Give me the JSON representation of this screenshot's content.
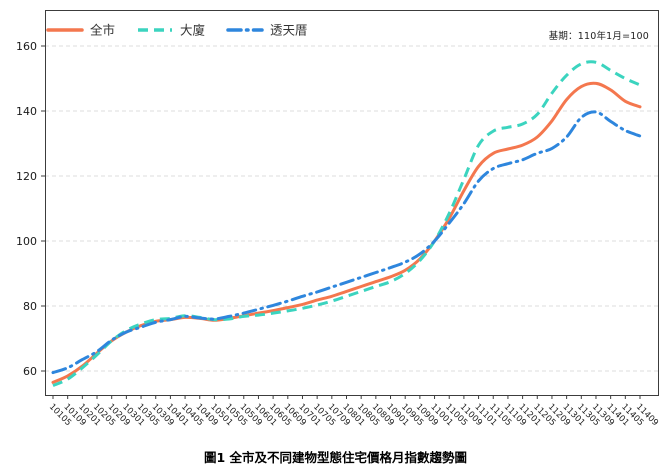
{
  "chart": {
    "note": "基期：110年1月=100",
    "title": "圖1 全市及不同建物型態住宅價格月指數趨勢圖"
  },
  "colors": {
    "grid": "#DCDCDC",
    "spine": "#3C3C3C",
    "tick_label": "#1A1A1A",
    "legend_text": "#333333",
    "note_text": "#222222"
  },
  "chart_data": {
    "type": "line",
    "title": "圖1 全市及不同建物型態住宅價格月指數趨勢圖",
    "note": "基期：110年1月=100",
    "legend_position": "top-left-inside",
    "grid": "horizontal-dashed",
    "yticks": [
      60,
      80,
      100,
      120,
      140,
      160
    ],
    "ylim": [
      52,
      166
    ],
    "x_labels": [
      "10105",
      "10109",
      "10201",
      "10205",
      "10209",
      "10301",
      "10305",
      "10309",
      "10401",
      "10405",
      "10409",
      "10501",
      "10505",
      "10509",
      "10601",
      "10605",
      "10609",
      "10701",
      "10705",
      "10709",
      "10801",
      "10805",
      "10809",
      "10901",
      "10905",
      "10909",
      "11001",
      "11005",
      "11009",
      "11101",
      "11105",
      "11109",
      "11201",
      "11205",
      "11209",
      "11301",
      "11305",
      "11309",
      "11401",
      "11405",
      "11409"
    ],
    "series": [
      {
        "key": "citywide",
        "name": "全市",
        "color": "#F4774E",
        "line_style": "solid",
        "values": [
          56.5,
          58.5,
          61.5,
          65.5,
          69.3,
          72.0,
          74.0,
          75.3,
          75.8,
          76.5,
          76.2,
          75.6,
          76.2,
          77.0,
          77.8,
          78.6,
          79.5,
          80.5,
          81.8,
          83.0,
          84.5,
          86.0,
          87.5,
          89.0,
          91.0,
          94.5,
          100.0,
          107.0,
          115.5,
          123.0,
          127.0,
          128.3,
          129.5,
          132.0,
          137.0,
          143.5,
          147.5,
          148.5,
          146.5,
          143.0,
          141.3
        ]
      },
      {
        "key": "building",
        "name": "大廈",
        "color": "#3BD4BF",
        "line_style": "dashed",
        "values": [
          55.5,
          57.5,
          61.0,
          65.0,
          69.3,
          72.5,
          74.5,
          75.8,
          76.2,
          77.0,
          76.5,
          75.8,
          76.0,
          76.8,
          77.2,
          77.8,
          78.5,
          79.3,
          80.3,
          81.5,
          83.0,
          84.5,
          86.0,
          87.5,
          90.0,
          94.0,
          100.0,
          108.5,
          119.0,
          129.5,
          133.8,
          135.0,
          136.0,
          139.0,
          145.5,
          151.0,
          154.5,
          155.0,
          152.5,
          150.0,
          148.0
        ]
      },
      {
        "key": "townhouse",
        "name": "透天厝",
        "color": "#2E86DD",
        "line_style": "dash-dot",
        "values": [
          59.5,
          61.0,
          63.5,
          66.0,
          69.5,
          72.0,
          73.5,
          75.0,
          75.8,
          76.8,
          76.3,
          76.0,
          76.8,
          77.8,
          79.0,
          80.2,
          81.5,
          83.0,
          84.3,
          85.8,
          87.3,
          88.8,
          90.3,
          91.8,
          93.5,
          96.0,
          100.0,
          105.5,
          111.5,
          118.5,
          122.3,
          123.8,
          125.0,
          127.0,
          128.5,
          132.0,
          138.0,
          139.7,
          136.8,
          134.0,
          132.3
        ]
      }
    ]
  }
}
